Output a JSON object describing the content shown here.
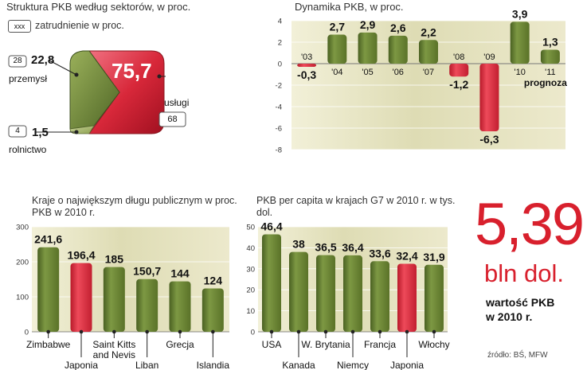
{
  "sectors": {
    "title": "Struktura PKB według sektorów, w proc.",
    "legend_box": "xxx",
    "legend_text": "zatrudnienie w proc.",
    "items": [
      {
        "name": "przemysł",
        "employment": "28",
        "value": "22,8"
      },
      {
        "name": "rolnictwo",
        "employment": "4",
        "value": "1,5"
      },
      {
        "name": "usługi",
        "employment": "68",
        "value": "75,7"
      }
    ],
    "colors": {
      "industry": "#6e8a3a",
      "agriculture": "#8aa04a",
      "services": "#d8283a"
    }
  },
  "chart_data": [
    {
      "type": "bar",
      "id": "dynamics",
      "title": "Dynamika PKB, w proc.",
      "categories": [
        "'03",
        "'04",
        "'05",
        "'06",
        "'07",
        "'08",
        "'09",
        "'10",
        "'11"
      ],
      "values": [
        -0.3,
        2.7,
        2.9,
        2.6,
        2.2,
        -1.2,
        -6.3,
        3.9,
        1.3
      ],
      "labels": [
        "-0,3",
        "2,7",
        "2,9",
        "2,6",
        "2,2",
        "-1,2",
        "-6,3",
        "3,9",
        "1,3"
      ],
      "yticks": [
        "4",
        "2",
        "0",
        "-2",
        "-4",
        "-6",
        "-8"
      ],
      "ylim": [
        -8,
        4
      ],
      "note": "prognoza",
      "colors": {
        "positive": "#6e8a3a",
        "negative": "#d8283a"
      }
    },
    {
      "type": "bar",
      "id": "debt",
      "title": "Kraje o największym długu publicznym w proc. PKB w 2010 r.",
      "categories": [
        "Zimbabwe",
        "Japonia",
        "Saint Kitts and Nevis",
        "Liban",
        "Grecja",
        "Islandia"
      ],
      "values": [
        241.6,
        196.4,
        185,
        150.7,
        144,
        124
      ],
      "labels": [
        "241,6",
        "196,4",
        "185",
        "150,7",
        "144",
        "124"
      ],
      "highlight": "Japonia",
      "yticks": [
        "300",
        "200",
        "100",
        "0"
      ],
      "ylim": [
        0,
        300
      ]
    },
    {
      "type": "bar",
      "id": "percapita",
      "title": "PKB per capita w krajach G7 w 2010 r. w tys. dol.",
      "categories": [
        "USA",
        "Kanada",
        "W. Brytania",
        "Niemcy",
        "Francja",
        "Japonia",
        "Włochy"
      ],
      "values": [
        46.4,
        38,
        36.5,
        36.4,
        33.6,
        32.4,
        31.9
      ],
      "labels": [
        "46,4",
        "38",
        "36,5",
        "36,4",
        "33,6",
        "32,4",
        "31,9"
      ],
      "highlight": "Japonia",
      "yticks": [
        "50",
        "40",
        "30",
        "20",
        "10",
        "0"
      ],
      "ylim": [
        0,
        50
      ]
    }
  ],
  "highlight_box": {
    "value": "5,39",
    "unit": "bln dol.",
    "caption_line1": "wartość PKB",
    "caption_line2": "w 2010 r."
  },
  "source": "źródło: BŚ, MFW"
}
